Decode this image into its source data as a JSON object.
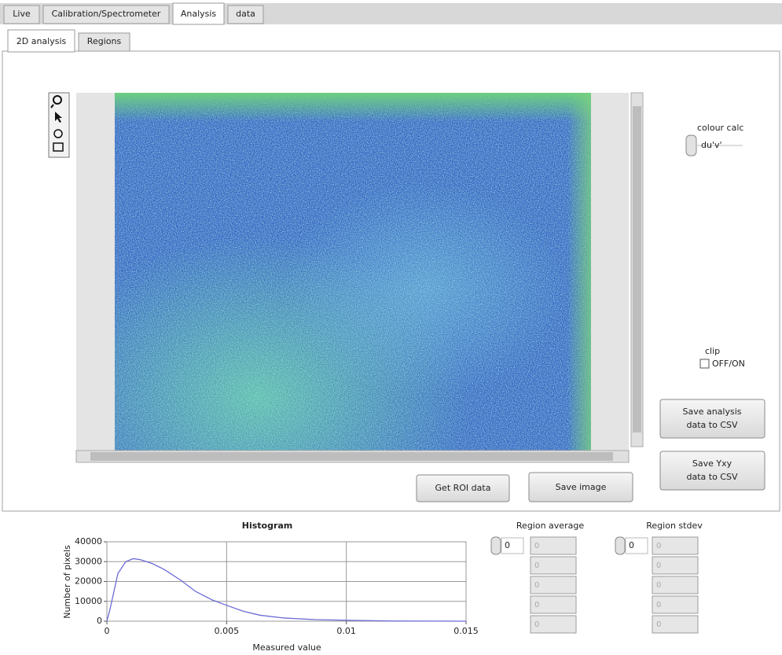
{
  "tabs": [
    "Live",
    "Calibration/Spectrometer",
    "Analysis",
    "data"
  ],
  "subtabs": [
    "2D analysis",
    "Regions"
  ],
  "colour_calc": {
    "label": "colour calc",
    "value": "du'v'"
  },
  "clip": {
    "label": "clip",
    "option": "OFF/ON"
  },
  "buttons": {
    "save_analysis": [
      "Save analysis",
      "data to CSV"
    ],
    "save_yxy": [
      "Save Yxy",
      "data to CSV"
    ],
    "get_roi": "Get ROI data",
    "save_image": "Save image"
  },
  "region_average": {
    "label": "Region average",
    "index": 0,
    "values": [
      0,
      0,
      0,
      0,
      0
    ]
  },
  "region_stdev": {
    "label": "Region stdev",
    "index": 0,
    "values": [
      0,
      0,
      0,
      0,
      0
    ]
  },
  "chart_data": {
    "type": "line",
    "title": "Histogram",
    "x_label": "Measured value",
    "y_label": "Number of pixels",
    "xlim": [
      0,
      0.015
    ],
    "ylim": [
      0,
      40000
    ],
    "xticks": [
      0,
      0.005,
      0.01,
      0.015
    ],
    "yticks": [
      0,
      10000,
      20000,
      30000,
      40000
    ],
    "grid": true,
    "series": [
      {
        "name": "Histogram",
        "color": "#6b6bd6",
        "x": [
          0,
          0.00013,
          0.00046,
          0.00079,
          0.0011,
          0.0014,
          0.0019,
          0.0024,
          0.0031,
          0.0037,
          0.0044,
          0.005,
          0.0057,
          0.0064,
          0.0074,
          0.0087,
          0.0103,
          0.0119,
          0.015
        ],
        "values": [
          0,
          6000,
          24000,
          30000,
          31500,
          31000,
          29000,
          26000,
          20500,
          15000,
          10700,
          8000,
          5000,
          3000,
          1600,
          800,
          400,
          100,
          0
        ]
      }
    ]
  }
}
